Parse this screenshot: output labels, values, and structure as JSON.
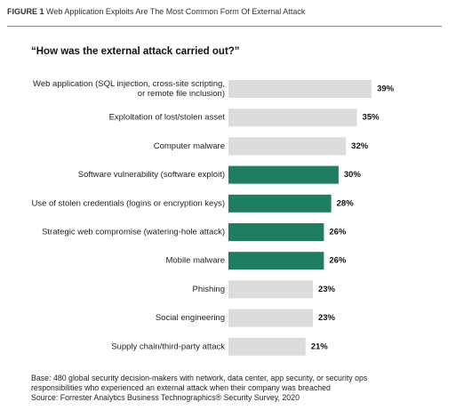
{
  "figure": {
    "label": "FIGURE 1",
    "title": "Web Application Exploits Are The Most Common Form Of External Attack"
  },
  "chart_data": {
    "type": "bar",
    "orientation": "horizontal",
    "title": "“How was the external attack carried out?”",
    "categories": [
      [
        "Web application (SQL injection, cross-site scripting,",
        "or remote file inclusion)"
      ],
      [
        "Exploitation of lost/stolen asset"
      ],
      [
        "Computer malware"
      ],
      [
        "Software vulnerability (software exploit)"
      ],
      [
        "Use of stolen credentials (logins or encryption keys)"
      ],
      [
        "Strategic web compromise (watering-hole attack)"
      ],
      [
        "Mobile malware"
      ],
      [
        "Phishing"
      ],
      [
        "Social engineering"
      ],
      [
        "Supply chain/third-party attack"
      ]
    ],
    "values": [
      39,
      35,
      32,
      30,
      28,
      26,
      26,
      23,
      23,
      21
    ],
    "value_labels": [
      "39%",
      "35%",
      "32%",
      "30%",
      "28%",
      "26%",
      "26%",
      "23%",
      "23%",
      "21%"
    ],
    "highlighted": [
      false,
      false,
      false,
      true,
      true,
      true,
      true,
      false,
      false,
      false
    ],
    "colors": {
      "default": "#dcdcdc",
      "highlight": "#1e7d63"
    },
    "grid": false,
    "xlabel": "",
    "ylabel": ""
  },
  "footnote": {
    "line1": "Base: 480 global security decision-makers with network, data center, app security, or security ops",
    "line2": "responsibilities who experienced an external attack when their company was breached",
    "line3": "Source: Forrester Analytics Business Technographics® Security Survey, 2020"
  }
}
